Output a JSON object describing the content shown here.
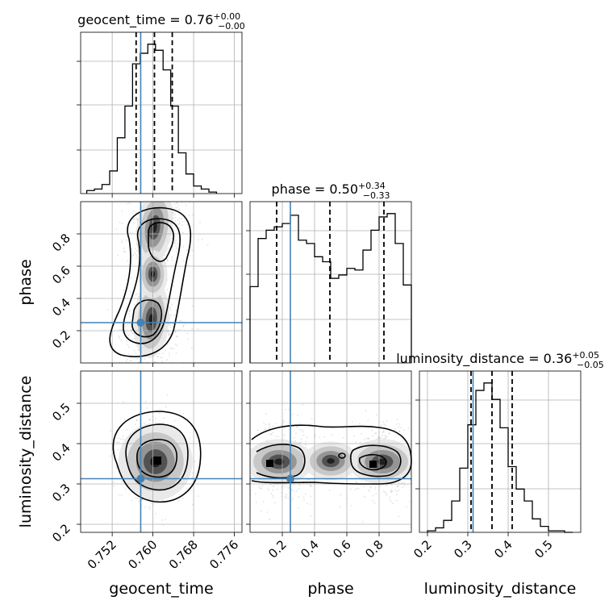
{
  "chart_data": {
    "type": "corner",
    "parameters": [
      "geocent_time",
      "phase",
      "luminosity_distance"
    ],
    "truths": {
      "geocent_time": 0.7576,
      "phase": 0.25,
      "luminosity_distance": 0.313
    },
    "truth_color": "#4682b4",
    "panels": {
      "geocent_time": {
        "title_main": "geocent_time = 0.76",
        "title_sup": "+0.00",
        "title_sub": "−0.00",
        "xlim": [
          0.7458,
          0.7775
        ],
        "ticks": [
          0.752,
          0.76,
          0.768,
          0.776
        ],
        "tick_labels": [
          "0.752",
          "0.760",
          "0.768",
          "0.776"
        ],
        "quantiles": [
          0.7567,
          0.7603,
          0.7638
        ],
        "hist_edges": [
          0.747,
          0.7485,
          0.75,
          0.7515,
          0.753,
          0.7545,
          0.756,
          0.7575,
          0.759,
          0.7605,
          0.762,
          0.7635,
          0.765,
          0.7665,
          0.768,
          0.7695,
          0.771,
          0.7725
        ],
        "hist_counts": [
          0.02,
          0.03,
          0.06,
          0.15,
          0.37,
          0.58,
          0.86,
          0.93,
          0.99,
          0.95,
          0.82,
          0.58,
          0.27,
          0.13,
          0.05,
          0.03,
          0.01
        ]
      },
      "phase": {
        "title_main": "phase = 0.50",
        "title_sup": "+0.34",
        "title_sub": "−0.33",
        "xlim": [
          0.0,
          1.0
        ],
        "ticks": [
          0.2,
          0.4,
          0.6,
          0.8
        ],
        "tick_labels": [
          "0.2",
          "0.4",
          "0.6",
          "0.8"
        ],
        "quantiles": [
          0.165,
          0.495,
          0.83
        ],
        "hist_edges": [
          0.0,
          0.05,
          0.1,
          0.15,
          0.2,
          0.25,
          0.3,
          0.35,
          0.4,
          0.45,
          0.5,
          0.55,
          0.6,
          0.65,
          0.7,
          0.75,
          0.8,
          0.85,
          0.9,
          0.95,
          1.0
        ],
        "hist_counts": [
          0.46,
          0.75,
          0.8,
          0.82,
          0.84,
          0.89,
          0.74,
          0.72,
          0.64,
          0.61,
          0.51,
          0.53,
          0.57,
          0.56,
          0.68,
          0.8,
          0.88,
          0.9,
          0.72,
          0.47
        ]
      },
      "luminosity_distance": {
        "title_main": "luminosity_distance = 0.36",
        "title_sup": "+0.05",
        "title_sub": "−0.05",
        "xlim": [
          0.18,
          0.58
        ],
        "ylim": [
          0.18,
          0.58
        ],
        "ticks": [
          0.2,
          0.3,
          0.4,
          0.5
        ],
        "tick_labels": [
          "0.2",
          "0.3",
          "0.4",
          "0.5"
        ],
        "quantiles": [
          0.308,
          0.36,
          0.41
        ],
        "hist_edges": [
          0.2,
          0.22,
          0.24,
          0.26,
          0.28,
          0.3,
          0.32,
          0.34,
          0.36,
          0.38,
          0.4,
          0.42,
          0.44,
          0.46,
          0.48,
          0.5,
          0.52,
          0.54,
          0.56
        ],
        "hist_counts": [
          0.01,
          0.03,
          0.08,
          0.21,
          0.43,
          0.72,
          0.95,
          1.0,
          0.89,
          0.7,
          0.44,
          0.29,
          0.21,
          0.09,
          0.04,
          0.01,
          0.01,
          0.0
        ]
      }
    },
    "phase_ylim": [
      0.0,
      1.0
    ],
    "phase_yticks": [
      0.2,
      0.4,
      0.6,
      0.8
    ],
    "phase_ytick_labels": [
      "0.2",
      "0.4",
      "0.6",
      "0.8"
    ],
    "ld_yticks": [
      0.2,
      0.3,
      0.4,
      0.5
    ],
    "ld_ytick_labels": [
      "0.2",
      "0.3",
      "0.4",
      "0.5"
    ],
    "xlabels": [
      "geocent_time",
      "phase",
      "luminosity_distance"
    ],
    "ylabels": [
      "phase",
      "luminosity_distance"
    ],
    "grid": true
  }
}
